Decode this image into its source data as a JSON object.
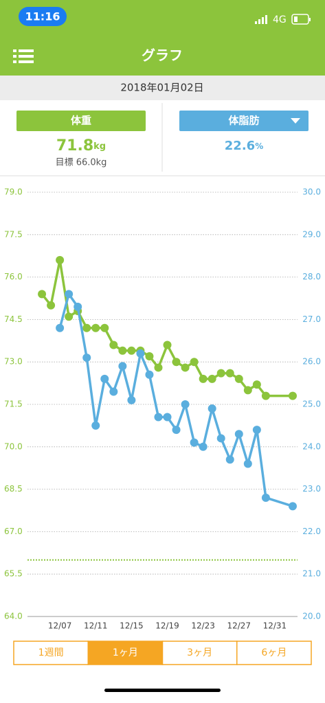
{
  "status_bar": {
    "time": "11:16",
    "network": "4G"
  },
  "header": {
    "title": "グラフ"
  },
  "date": "2018年01月02日",
  "weight": {
    "label": "体重",
    "value": "71.8",
    "unit": "kg",
    "target": "目標 66.0kg"
  },
  "body_fat": {
    "label": "体脂肪",
    "value": "22.6",
    "unit": "%"
  },
  "chart_data": {
    "type": "line",
    "categories": [
      null,
      null,
      null,
      "12/07",
      null,
      null,
      null,
      "12/11",
      null,
      null,
      null,
      "12/15",
      null,
      null,
      null,
      "12/19",
      null,
      null,
      null,
      "12/23",
      null,
      null,
      null,
      "12/27",
      null,
      null,
      null,
      "12/31",
      null,
      null
    ],
    "series": [
      {
        "name": "体重",
        "color": "#8cc43c",
        "axis": "y",
        "values": [
          null,
          75.4,
          75.0,
          76.6,
          74.6,
          74.8,
          74.2,
          74.2,
          74.2,
          73.6,
          73.4,
          73.4,
          73.4,
          73.2,
          72.8,
          73.6,
          73.0,
          72.8,
          73.0,
          72.4,
          72.4,
          72.6,
          72.6,
          72.4,
          72.0,
          72.2,
          71.8,
          null,
          null,
          71.8
        ]
      },
      {
        "name": "体脂肪",
        "color": "#5aaede",
        "axis": "y2",
        "values": [
          null,
          null,
          null,
          26.8,
          27.6,
          27.3,
          26.1,
          24.5,
          25.6,
          25.3,
          25.9,
          25.1,
          26.2,
          25.7,
          24.7,
          24.7,
          24.4,
          25.0,
          24.1,
          24.0,
          24.9,
          24.2,
          23.7,
          24.3,
          23.6,
          24.4,
          22.8,
          null,
          null,
          22.6
        ]
      }
    ],
    "target_line": 66.0,
    "ylim": [
      64.0,
      79.0
    ],
    "yticks": [
      {
        "value": 64.0,
        "label": "64.0"
      },
      65.5,
      {
        "value": 67.0,
        "label": "67.0"
      },
      68.5,
      {
        "value": 70.0,
        "label": "70.0"
      },
      71.5,
      {
        "value": 73.0,
        "label": "73.0"
      },
      74.5,
      {
        "value": 76.0,
        "label": "76.0"
      },
      77.5,
      {
        "value": 79.0,
        "label": "79.0"
      }
    ],
    "y2lim": [
      20.0,
      30.0
    ],
    "y2ticks": [
      {
        "value": 20.0,
        "label": "20.0"
      },
      {
        "value": 21.0,
        "label": "21.0"
      },
      {
        "value": 22.0,
        "label": "22.0"
      },
      {
        "value": 23.0,
        "label": "23.0"
      },
      {
        "value": 24.0,
        "label": "24.0"
      },
      {
        "value": 25.0,
        "label": "25.0"
      },
      {
        "value": 26.0,
        "label": "26.0"
      },
      {
        "value": 27.0,
        "label": "27.0"
      },
      {
        "value": 28.0,
        "label": "28.0"
      },
      {
        "value": 29.0,
        "label": "29.0"
      },
      {
        "value": 30.0,
        "label": "30.0"
      }
    ],
    "grid": true
  },
  "tabs": {
    "items": [
      "1週間",
      "1ヶ月",
      "3ヶ月",
      "6ヶ月"
    ],
    "active_index": 1
  }
}
